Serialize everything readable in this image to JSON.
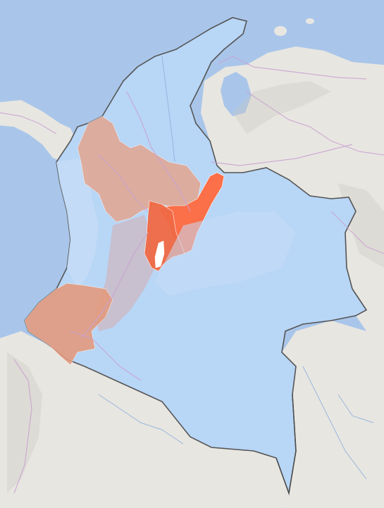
{
  "map": {
    "type": "choropleth",
    "labels": [],
    "colors": {
      "ocean": "#a9c6ea",
      "land": "#e8e6e1",
      "country_fill": "#b8d6f6",
      "highlight_light": "#e3a590",
      "highlight_medium": "#f0805c",
      "highlight_strong": "#ff5a30",
      "border": "#555555",
      "roads": "#c9a3d1",
      "rivers": "#8fb3dc"
    },
    "regions": [
      {
        "name": "antioquia-region",
        "level": "light"
      },
      {
        "name": "narino-region",
        "level": "light"
      },
      {
        "name": "cordoba-region",
        "level": "light"
      },
      {
        "name": "boyaca-region",
        "level": "strong"
      },
      {
        "name": "cundinamarca-region",
        "level": "strong"
      },
      {
        "name": "andes-corridor-region",
        "level": "light"
      },
      {
        "name": "bogota-district",
        "level": "none"
      }
    ]
  }
}
